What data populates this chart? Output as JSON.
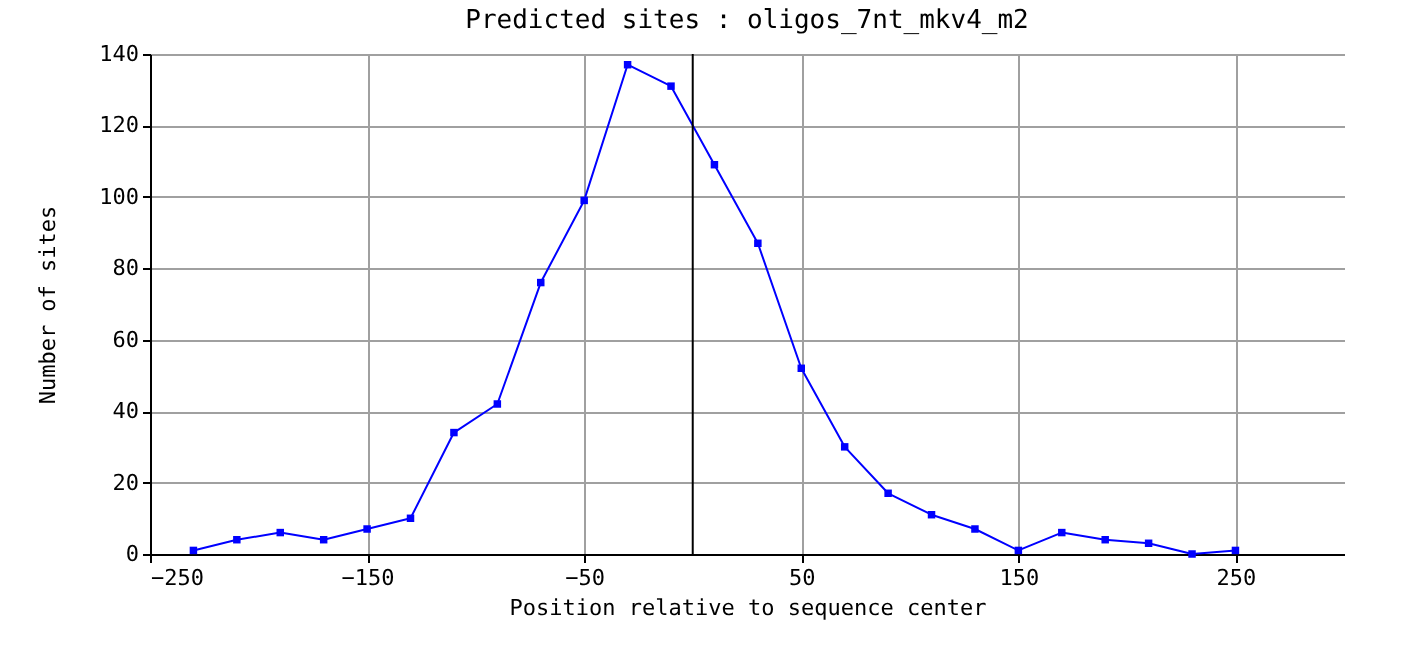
{
  "chart_data": {
    "type": "line",
    "title": "Predicted sites : oligos_7nt_mkv4_m2",
    "xlabel": "Position relative to sequence center",
    "ylabel": "Number of sites",
    "x": [
      -230,
      -210,
      -190,
      -170,
      -150,
      -130,
      -110,
      -90,
      -70,
      -50,
      -30,
      -10,
      10,
      30,
      50,
      70,
      90,
      110,
      130,
      150,
      170,
      190,
      210,
      230,
      250
    ],
    "series": [
      {
        "color": "#0000ff",
        "values": [
          1,
          4,
          6,
          4,
          7,
          10,
          34,
          42,
          76,
          99,
          137,
          131,
          109,
          87,
          52,
          30,
          17,
          11,
          7,
          1,
          6,
          4,
          3,
          0,
          1
        ]
      }
    ],
    "xlim": [
      -250,
      300
    ],
    "xticks": [
      -250,
      -150,
      -50,
      50,
      150,
      250
    ],
    "ylim": [
      0,
      140
    ],
    "yticks": [
      0,
      20,
      40,
      60,
      80,
      100,
      120,
      140
    ],
    "ref_lines": [
      {
        "axis": "x",
        "value": 0,
        "color": "#000000"
      }
    ],
    "grid": true,
    "marker": "square"
  }
}
